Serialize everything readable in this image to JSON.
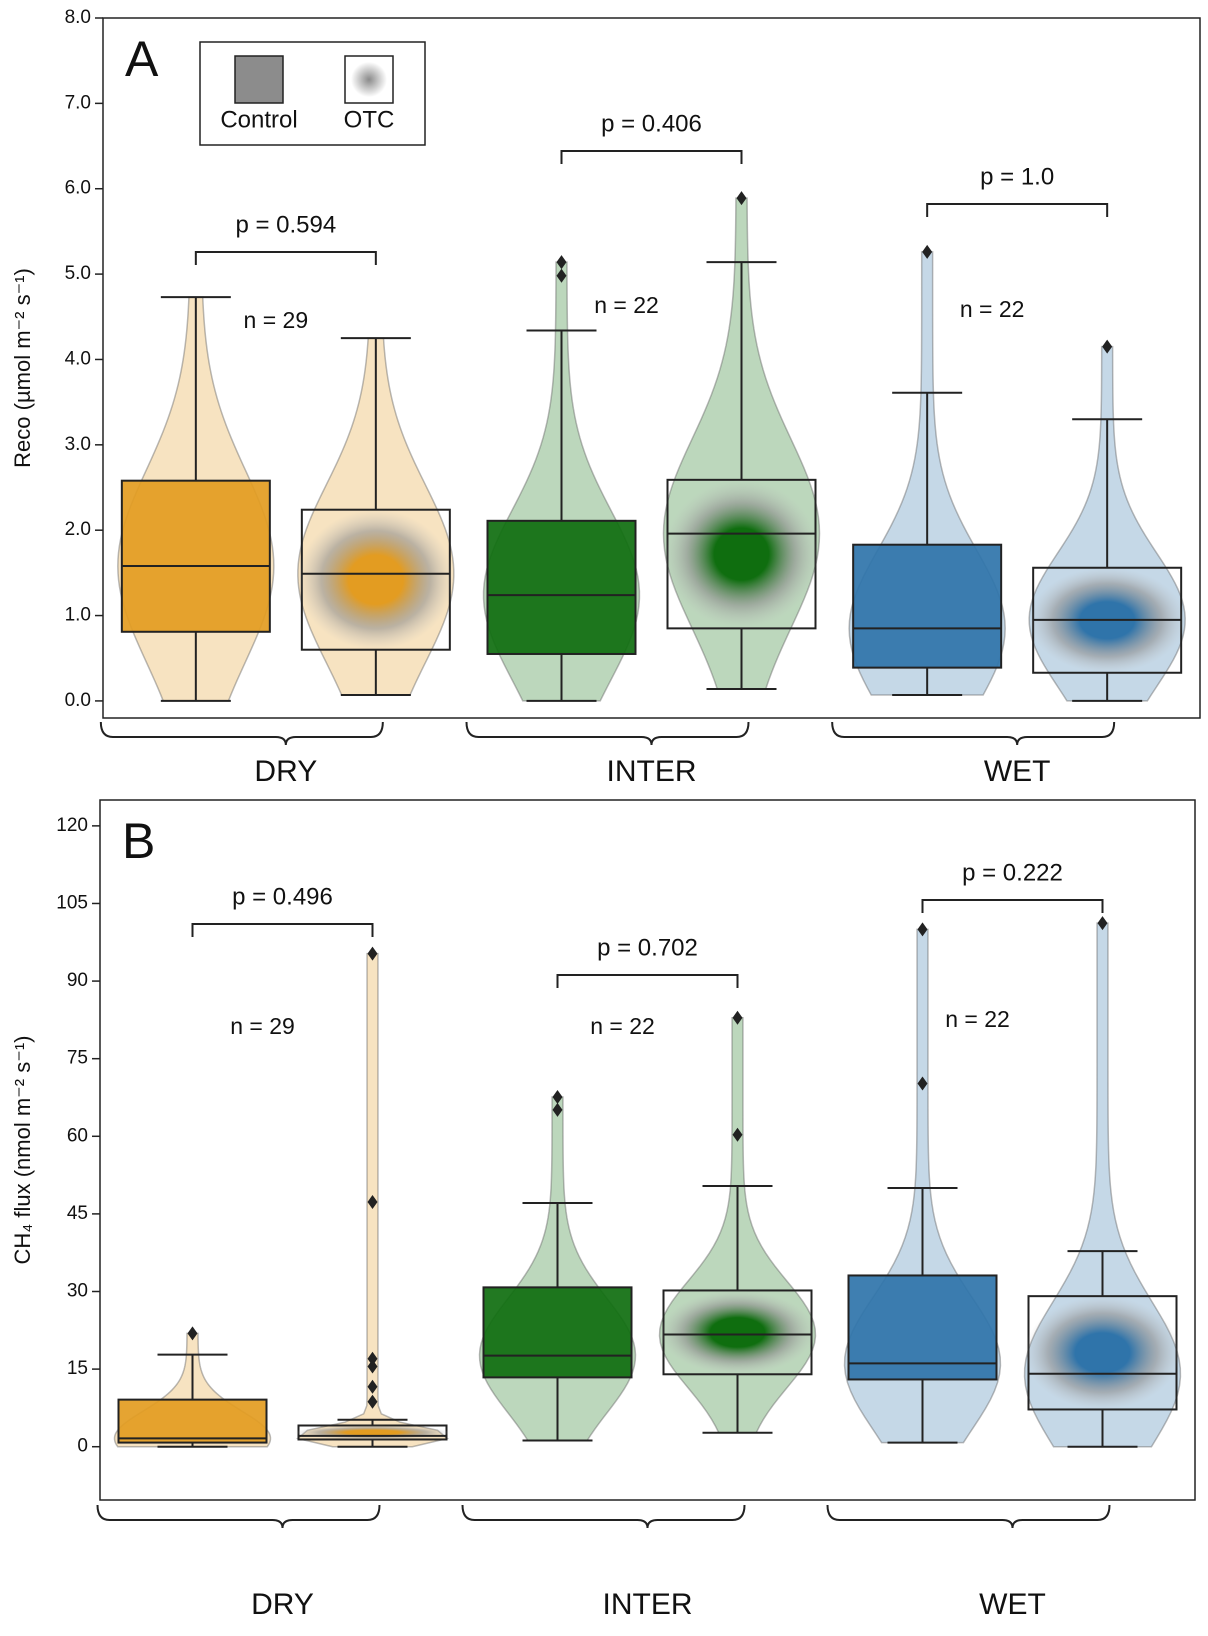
{
  "chart_data": [
    {
      "type": "box",
      "panel_label": "A",
      "ylabel": "Reco (µmol m⁻² s⁻¹)",
      "categories": [
        "DRY",
        "INTER",
        "WET"
      ],
      "category_colors": [
        "#e39c21",
        "#0f6e0f",
        "#2f74aa"
      ],
      "legend": "upper left",
      "series": [
        {
          "name": "Control",
          "color": "#8c8c8c",
          "low": [
            0.0,
            0.0,
            0.07
          ],
          "q1": [
            0.81,
            0.55,
            0.39
          ],
          "median": [
            1.58,
            1.24,
            0.85
          ],
          "q3": [
            2.58,
            2.11,
            1.83
          ],
          "high": [
            4.73,
            4.34,
            3.61
          ],
          "outliers": [
            [],
            [
              4.98,
              5.14
            ],
            [
              5.26
            ]
          ]
        },
        {
          "name": "OTC",
          "color": "#ffffff",
          "low": [
            0.07,
            0.14,
            0.0
          ],
          "q1": [
            0.6,
            0.85,
            0.33
          ],
          "median": [
            1.49,
            1.96,
            0.95
          ],
          "q3": [
            2.24,
            2.59,
            1.56
          ],
          "high": [
            4.25,
            5.14,
            3.3
          ],
          "outliers": [
            [],
            [
              5.89
            ],
            [
              4.15
            ]
          ]
        }
      ],
      "p_values": [
        "p = 0.594",
        "p = 0.406",
        "p = 1.0"
      ],
      "n_labels": [
        "n = 29",
        "n = 22",
        "n = 22"
      ],
      "ylim": [
        -0.2,
        8.0
      ],
      "yticks": [
        {
          "value": 0,
          "label": "0.0"
        },
        {
          "value": 1,
          "label": "1.0"
        },
        {
          "value": 2,
          "label": "2.0"
        },
        {
          "value": 3,
          "label": "3.0"
        },
        {
          "value": 4,
          "label": "4.0"
        },
        {
          "value": 5,
          "label": "5.0"
        },
        {
          "value": 6,
          "label": "6.0"
        },
        {
          "value": 7,
          "label": "7.0"
        },
        {
          "value": 8,
          "label": "8.0"
        }
      ]
    },
    {
      "type": "box",
      "panel_label": "B",
      "ylabel": "CH₄ flux (nmol m⁻² s⁻¹)",
      "categories": [
        "DRY",
        "INTER",
        "WET"
      ],
      "category_colors": [
        "#e39c21",
        "#0f6e0f",
        "#2f74aa"
      ],
      "series": [
        {
          "name": "Control",
          "low": [
            0,
            1.2,
            0.8
          ],
          "q1": [
            0.8,
            13.4,
            13
          ],
          "median": [
            1.6,
            17.6,
            16.1
          ],
          "q3": [
            9.1,
            30.8,
            33.1
          ],
          "high": [
            17.8,
            47.1,
            50
          ],
          "outliers": [
            [
              21.9
            ],
            [
              65.1,
              67.6
            ],
            [
              70.2,
              100
            ]
          ]
        },
        {
          "name": "OTC",
          "low": [
            0,
            2.7,
            0
          ],
          "q1": [
            1.4,
            14,
            7.2
          ],
          "median": [
            2.1,
            21.7,
            14.1
          ],
          "q3": [
            4.1,
            30.2,
            29.1
          ],
          "high": [
            5.2,
            50.4,
            37.8
          ],
          "outliers": [
            [
              8.7,
              11.6,
              15.5,
              17,
              47.3,
              95.3
            ],
            [
              60.3,
              82.9
            ],
            [
              101.2
            ]
          ]
        }
      ],
      "p_values": [
        "p = 0.496",
        "p = 0.702",
        "p = 0.222"
      ],
      "n_labels": [
        "n = 29",
        "n = 22",
        "n = 22"
      ],
      "ylim": [
        -10.3,
        125
      ],
      "yticks": [
        0,
        15,
        30,
        45,
        60,
        75,
        90,
        105,
        120
      ]
    }
  ]
}
